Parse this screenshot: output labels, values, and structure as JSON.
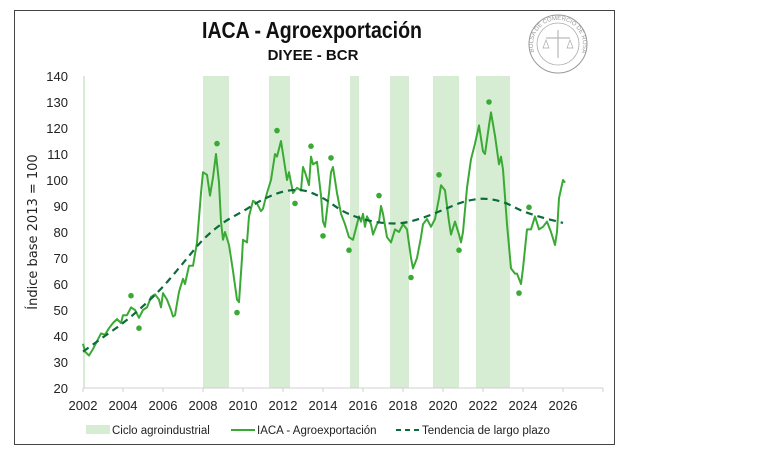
{
  "chart_data": {
    "type": "line",
    "title": "IACA - Agroexportación",
    "subtitle": "DIYEE - BCR",
    "xlabel": "",
    "ylabel": "Índice base 2013 = 100",
    "xlim": [
      2002,
      2028
    ],
    "ylim": [
      20,
      140
    ],
    "x_ticks": [
      "2002",
      "2004",
      "2006",
      "2008",
      "2010",
      "2012",
      "2014",
      "2016",
      "2018",
      "2020",
      "2022",
      "2024",
      "2026"
    ],
    "y_ticks": [
      "20",
      "30",
      "40",
      "50",
      "60",
      "70",
      "80",
      "90",
      "100",
      "110",
      "120",
      "130",
      "140"
    ],
    "grid": false,
    "legend_position": "bottom",
    "legend": [
      "Ciclo agroindustrial",
      "IACA - Agroexportación",
      "Tendencia de largo plazo"
    ],
    "colors": {
      "band": "#d6edd3",
      "line": "#3aaa35",
      "trend": "#0b6b3a",
      "points": "#3aaa35"
    },
    "cycle_bands": [
      [
        2002.0,
        2002.1
      ],
      [
        2008.0,
        2009.3
      ],
      [
        2011.3,
        2012.35
      ],
      [
        2015.35,
        2015.8
      ],
      [
        2017.35,
        2018.3
      ],
      [
        2019.5,
        2020.8
      ],
      [
        2021.65,
        2023.35
      ]
    ],
    "series": [
      {
        "name": "IACA - Agroexportación",
        "x": [
          2002.0,
          2002.1,
          2002.3,
          2002.5,
          2002.7,
          2002.9,
          2003.1,
          2003.3,
          2003.5,
          2003.7,
          2003.9,
          2004.0,
          2004.2,
          2004.4,
          2004.6,
          2004.8,
          2005.0,
          2005.2,
          2005.4,
          2005.6,
          2005.8,
          2005.9,
          2006.0,
          2006.2,
          2006.4,
          2006.5,
          2006.6,
          2006.8,
          2007.0,
          2007.1,
          2007.3,
          2007.5,
          2007.7,
          2007.9,
          2008.0,
          2008.2,
          2008.35,
          2008.5,
          2008.65,
          2008.8,
          2008.9,
          2009.0,
          2009.1,
          2009.3,
          2009.5,
          2009.7,
          2009.8,
          2009.95,
          2010.0,
          2010.2,
          2010.3,
          2010.5,
          2010.7,
          2010.9,
          2011.0,
          2011.2,
          2011.4,
          2011.6,
          2011.7,
          2011.9,
          2012.0,
          2012.2,
          2012.3,
          2012.5,
          2012.7,
          2012.9,
          2013.0,
          2013.1,
          2013.3,
          2013.4,
          2013.5,
          2013.7,
          2013.9,
          2014.0,
          2014.1,
          2014.3,
          2014.4,
          2014.5,
          2014.7,
          2014.9,
          2015.1,
          2015.3,
          2015.5,
          2015.6,
          2015.8,
          2015.9,
          2016.0,
          2016.1,
          2016.2,
          2016.4,
          2016.5,
          2016.7,
          2016.8,
          2016.9,
          2017.0,
          2017.2,
          2017.4,
          2017.6,
          2017.8,
          2018.0,
          2018.2,
          2018.4,
          2018.5,
          2018.7,
          2018.9,
          2019.0,
          2019.2,
          2019.4,
          2019.6,
          2019.8,
          2019.9,
          2020.1,
          2020.3,
          2020.4,
          2020.6,
          2020.8,
          2020.9,
          2021.0,
          2021.2,
          2021.4,
          2021.6,
          2021.8,
          2022.0,
          2022.1,
          2022.3,
          2022.4,
          2022.6,
          2022.8,
          2022.9,
          2023.0,
          2023.2,
          2023.4,
          2023.6,
          2023.7,
          2023.9,
          2024.0,
          2024.2,
          2024.4,
          2024.6,
          2024.8,
          2025.0,
          2025.2,
          2025.4,
          2025.6,
          2025.7,
          2025.8,
          2026.0,
          2026.1
        ],
        "values": [
          37,
          34,
          32.5,
          35,
          38,
          41,
          40.5,
          43,
          45,
          46.5,
          45,
          48,
          48,
          51,
          50,
          47,
          50,
          51,
          55,
          56,
          54,
          51,
          56.5,
          54,
          50,
          47.5,
          48,
          57,
          62,
          60,
          67,
          67,
          76,
          95,
          103,
          102,
          94,
          101,
          110,
          99,
          84,
          77,
          80,
          75,
          65,
          54,
          53,
          70,
          77,
          76,
          86,
          92,
          91,
          88,
          89,
          95,
          100,
          110,
          109,
          115,
          110,
          100,
          103,
          95,
          97,
          96,
          105,
          103,
          98,
          109,
          106,
          107,
          94,
          84,
          82,
          95,
          103,
          105,
          95,
          87,
          83,
          78,
          77,
          80,
          86,
          84,
          87,
          82,
          86,
          83,
          79,
          83,
          84,
          90,
          87,
          78,
          76,
          81,
          80,
          83,
          81,
          70,
          66,
          70,
          78,
          83,
          85,
          82,
          85,
          93,
          98,
          96,
          84,
          79,
          84,
          79,
          76,
          80,
          97,
          108,
          114,
          121,
          111,
          110,
          121,
          126,
          117,
          106,
          109,
          104,
          83,
          66,
          64,
          64,
          60,
          66,
          81,
          81,
          86,
          81,
          82,
          84,
          80,
          75,
          80,
          93,
          100,
          99
        ]
      },
      {
        "name": "Tendencia de largo plazo",
        "x": [
          2002,
          2003,
          2004,
          2005,
          2006,
          2007,
          2008,
          2009,
          2010,
          2011,
          2012,
          2013,
          2014,
          2015,
          2016,
          2017,
          2018,
          2019,
          2020,
          2021,
          2022,
          2023,
          2024,
          2025,
          2026
        ],
        "values": [
          34,
          39.5,
          45,
          51.5,
          59,
          68,
          77,
          83.5,
          88,
          92.5,
          95.5,
          96,
          93,
          88,
          85,
          83.5,
          83.5,
          85.5,
          88.5,
          91.5,
          92.8,
          91.5,
          88,
          85.5,
          83.5
        ]
      }
    ],
    "turning_points": {
      "x": [
        2004.4,
        2004.8,
        2008.7,
        2009.7,
        2011.7,
        2012.6,
        2013.4,
        2014.0,
        2014.4,
        2015.3,
        2016.8,
        2018.4,
        2019.8,
        2020.8,
        2022.3,
        2023.8,
        2024.3
      ],
      "values": [
        55.5,
        43,
        114,
        49,
        119,
        91,
        113,
        78.5,
        108.5,
        73,
        94,
        62.5,
        102,
        73,
        130,
        56.5,
        89.5
      ]
    }
  },
  "logo": {
    "text": "BOLSA DE COMERCIO DE ROSARIO"
  }
}
